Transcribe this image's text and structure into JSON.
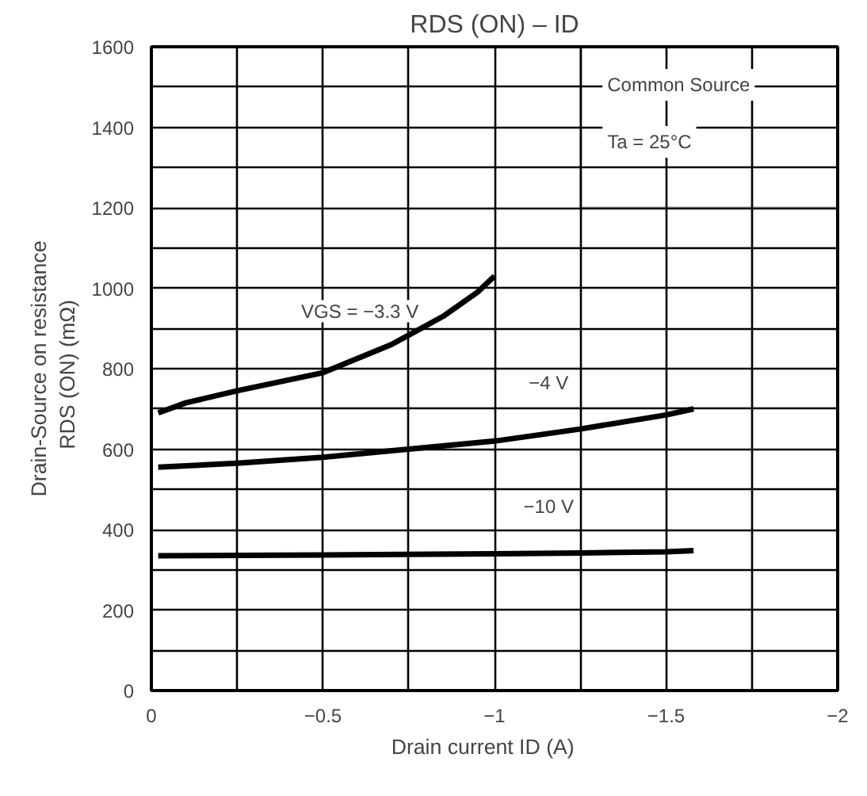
{
  "chart_data": {
    "type": "line",
    "title": "RDS (ON) – ID",
    "xlabel": "Drain current   ID   (A)",
    "ylabel": "Drain-Source on resistance\nRDS (ON)   (mΩ)",
    "annotations": [
      "Common Source",
      "Ta = 25°C"
    ],
    "xlim": [
      0,
      -2
    ],
    "ylim": [
      0,
      1600
    ],
    "xticks": [
      0,
      {
        "value": -0.25,
        "label": null
      },
      {
        "value": -0.5,
        "label": "−0.5"
      },
      {
        "value": -0.75,
        "label": null
      },
      {
        "value": -1,
        "label": "−1"
      },
      {
        "value": -1.25,
        "label": null
      },
      {
        "value": -1.5,
        "label": "−1.5"
      },
      {
        "value": -1.75,
        "label": null
      },
      {
        "value": -2,
        "label": "−2"
      }
    ],
    "yticks": [
      0,
      {
        "value": 100,
        "label": null
      },
      200,
      {
        "value": 300,
        "label": null
      },
      400,
      {
        "value": 500,
        "label": null
      },
      600,
      {
        "value": 700,
        "label": null
      },
      800,
      {
        "value": 900,
        "label": null
      },
      1000,
      {
        "value": 1100,
        "label": null
      },
      1200,
      {
        "value": 1300,
        "label": null
      },
      1400,
      {
        "value": 1500,
        "label": null
      },
      1600
    ],
    "grid": true,
    "marker": "none",
    "line_style": "solid",
    "series": [
      {
        "name": "VGS = −3.3 V",
        "color": "#000000",
        "x": [
          -0.02,
          -0.1,
          -0.25,
          -0.5,
          -0.7,
          -0.85,
          -0.95,
          -1.0
        ],
        "values": [
          690,
          715,
          745,
          790,
          860,
          930,
          990,
          1030
        ]
      },
      {
        "name": "−4 V",
        "color": "#000000",
        "x": [
          -0.02,
          -0.25,
          -0.5,
          -0.75,
          -1.0,
          -1.25,
          -1.5,
          -1.58
        ],
        "values": [
          555,
          565,
          580,
          600,
          620,
          650,
          685,
          700
        ]
      },
      {
        "name": "−10 V",
        "color": "#000000",
        "x": [
          -0.02,
          -0.5,
          -1.0,
          -1.25,
          -1.5,
          -1.58
        ],
        "values": [
          335,
          337,
          340,
          342,
          345,
          348
        ]
      }
    ]
  }
}
